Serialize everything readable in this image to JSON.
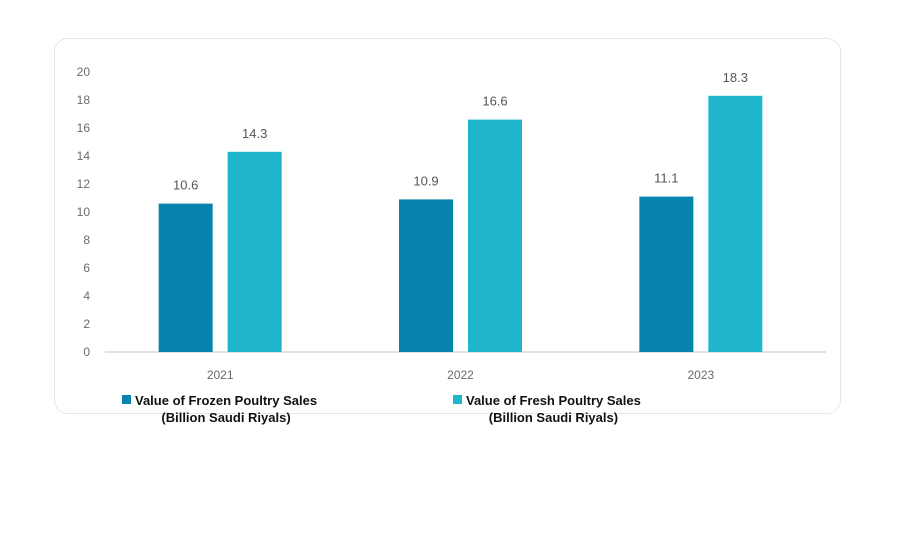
{
  "colors": {
    "frozen": "#0784ad",
    "fresh": "#1fb5cd",
    "axis": "#d0d0d0"
  },
  "chart_data": {
    "type": "bar",
    "title": "",
    "xlabel": "",
    "ylabel": "",
    "categories": [
      "2021",
      "2022",
      "2023"
    ],
    "ylim": [
      0,
      20
    ],
    "yticks": [
      0,
      2,
      4,
      6,
      8,
      10,
      12,
      14,
      16,
      18,
      20
    ],
    "grid": false,
    "legend_position": "bottom",
    "series": [
      {
        "name": "Value of Frozen Poultry Sales (Billion Saudi Riyals)",
        "values": [
          10.6,
          10.9,
          11.1
        ],
        "labels": [
          "10.6",
          "10.9",
          "11.1"
        ]
      },
      {
        "name": "Value of Fresh Poultry Sales (Billion Saudi Riyals)",
        "values": [
          14.3,
          16.6,
          18.3
        ],
        "labels": [
          "14.3",
          "16.6",
          "18.3"
        ]
      }
    ]
  },
  "legend": {
    "frozen_line1": "Value of Frozen Poultry Sales",
    "frozen_line2": "(Billion Saudi Riyals)",
    "fresh_line1": "Value of Fresh Poultry Sales",
    "fresh_line2": "(Billion Saudi Riyals)"
  }
}
